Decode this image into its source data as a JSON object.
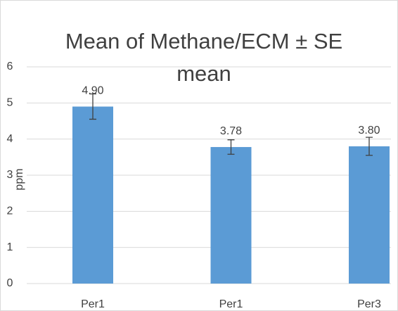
{
  "chart_data": {
    "type": "bar",
    "title": "Mean of Methane/ECM ± SE mean",
    "ylabel": "ppm",
    "categories": [
      "Per1",
      "Per1",
      "Per3"
    ],
    "values": [
      4.9,
      3.78,
      3.8
    ],
    "value_labels": [
      "4.90",
      "3.78",
      "3.80"
    ],
    "errors": [
      0.35,
      0.2,
      0.25
    ],
    "color": "#5b9bd5",
    "ylim": [
      0,
      6
    ],
    "yticks": [
      0,
      1,
      2,
      3,
      4,
      5,
      6
    ],
    "grid": true
  }
}
